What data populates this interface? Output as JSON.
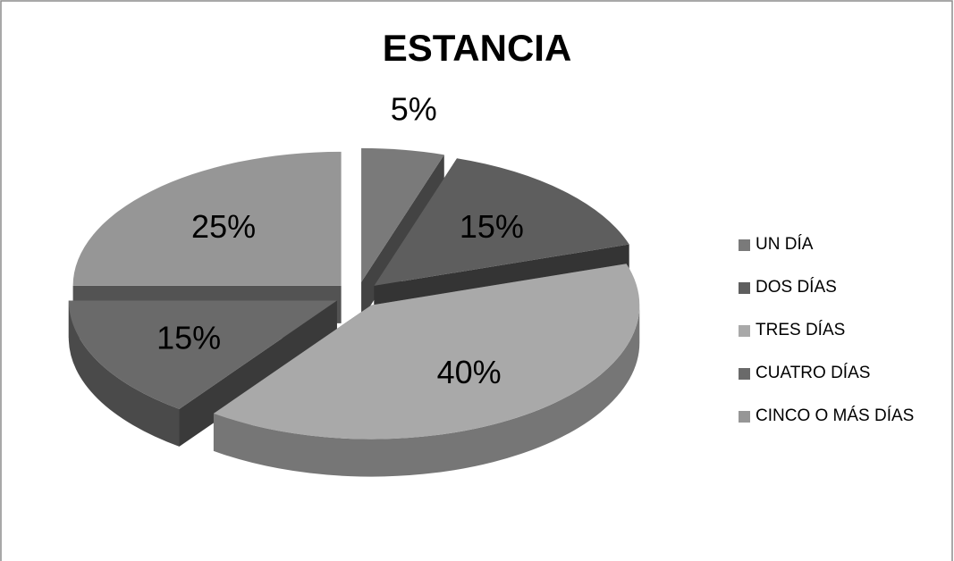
{
  "chart_data": {
    "type": "pie",
    "title": "ESTANCIA",
    "categories": [
      "UN DÍA",
      "DOS DÍAS",
      "TRES DÍAS",
      "CUATRO DÍAS",
      "CINCO O MÁS DÍAS"
    ],
    "values": [
      5,
      15,
      40,
      15,
      25
    ],
    "data_labels": [
      "5%",
      "15%",
      "40%",
      "15%",
      "25%"
    ],
    "colors": [
      "#7a7a7a",
      "#5e5e5e",
      "#a9a9a9",
      "#6a6a6a",
      "#969696"
    ],
    "exploded": true,
    "three_d": true,
    "legend_position": "right"
  }
}
